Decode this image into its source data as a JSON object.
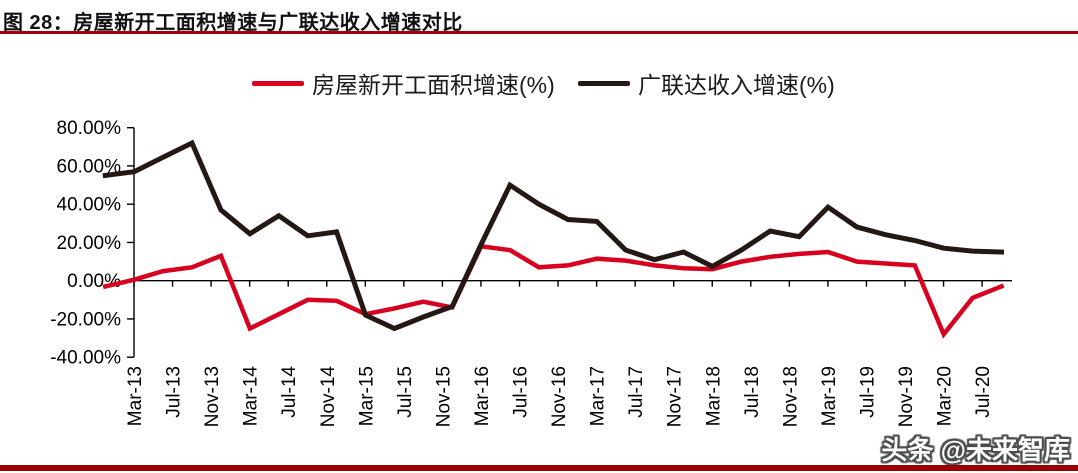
{
  "header": {
    "title": "图 28：房屋新开工面积增速与广联达收入增速对比"
  },
  "watermark": {
    "text": "头条 @未来智库"
  },
  "colors": {
    "housing_line": "#d7001e",
    "glodon_line": "#241814",
    "title_underline": "#a3000e",
    "bottom_bar": "#990000",
    "axis": "#000000"
  },
  "chart_data": {
    "type": "line",
    "title": "房屋新开工面积增速与广联达收入增速对比",
    "x": [
      "Dec-12",
      "Mar-13",
      "Jun-13",
      "Sep-13",
      "Dec-13",
      "Mar-14",
      "Jun-14",
      "Sep-14",
      "Dec-14",
      "Mar-15",
      "Jun-15",
      "Sep-15",
      "Dec-15",
      "Mar-16",
      "Jun-16",
      "Sep-16",
      "Dec-16",
      "Mar-17",
      "Jun-17",
      "Sep-17",
      "Dec-17",
      "Mar-18",
      "Jun-18",
      "Sep-18",
      "Dec-18",
      "Mar-19",
      "Jun-19",
      "Sep-19",
      "Dec-19",
      "Mar-20",
      "Jun-20",
      "Sep-20"
    ],
    "series": [
      {
        "name": "房屋新开工面积增速(%)",
        "color": "#d7001e",
        "values": [
          -3,
          0.5,
          5,
          7,
          13,
          -25,
          -17.5,
          -10,
          -10.5,
          -17.5,
          -14.5,
          -11,
          -14,
          18,
          16,
          7,
          8,
          11.5,
          10.5,
          8,
          6.5,
          6,
          10,
          12.5,
          14,
          15,
          10,
          9,
          8,
          -28,
          -9,
          -3
        ]
      },
      {
        "name": "广联达收入增速(%)",
        "color": "#241814",
        "values": [
          55,
          57,
          64.5,
          72,
          37,
          24.5,
          34,
          23.5,
          25.5,
          -18,
          -25,
          -19,
          -13.5,
          19,
          50,
          40,
          32,
          31,
          16,
          11,
          15,
          7.5,
          16,
          26,
          23,
          38.5,
          28,
          24,
          21,
          17,
          15.5,
          15
        ]
      }
    ],
    "x_tick_labels": [
      "Mar-13",
      "Jul-13",
      "Nov-13",
      "Mar-14",
      "Jul-14",
      "Nov-14",
      "Mar-15",
      "Jul-15",
      "Nov-15",
      "Mar-16",
      "Jul-16",
      "Nov-16",
      "Mar-17",
      "Jul-17",
      "Nov-17",
      "Mar-18",
      "Jul-18",
      "Nov-18",
      "Mar-19",
      "Jul-19",
      "Nov-19",
      "Mar-20",
      "Jul-20"
    ],
    "y_tick_values": [
      80,
      60,
      40,
      20,
      0,
      -20,
      -40
    ],
    "y_tick_labels": [
      "80.00%",
      "60.00%",
      "40.00%",
      "20.00%",
      "0.00%",
      "-20.00%",
      "-40.00%"
    ],
    "ylim": [
      -40,
      80
    ],
    "grid": false,
    "legend_position": "top"
  }
}
